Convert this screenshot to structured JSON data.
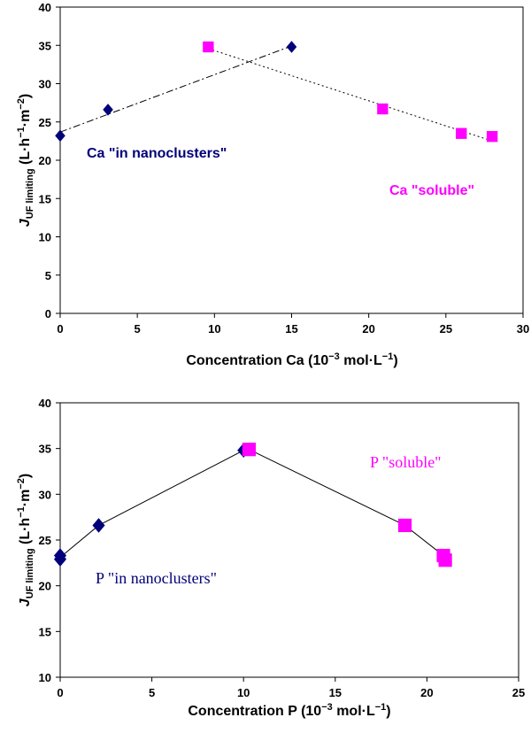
{
  "chart_data": [
    {
      "type": "scatter",
      "xlabel": "Concentration  Ca (10⁻³ mol·L⁻¹)",
      "ylabel": "JUF limiting (L·h⁻¹·m⁻²)",
      "xlim": [
        0,
        30
      ],
      "ylim": [
        0,
        40
      ],
      "xticks": [
        "0",
        "5",
        "10",
        "15",
        "20",
        "25",
        "30"
      ],
      "yticks": [
        "0",
        "5",
        "10",
        "15",
        "20",
        "25",
        "30",
        "35",
        "40"
      ],
      "grid": false,
      "series": [
        {
          "name": "Ca \"in nanoclusters\"",
          "marker": "diamond",
          "color": "#00007a",
          "trendline": "dash-dot",
          "x": [
            0,
            3.1,
            15
          ],
          "y": [
            23.2,
            26.6,
            34.8
          ]
        },
        {
          "name": "Ca \"soluble\"",
          "marker": "square",
          "color": "#ff00ff",
          "trendline": "dotted",
          "x": [
            9.6,
            20.9,
            26.0,
            28.0
          ],
          "y": [
            34.8,
            26.7,
            23.5,
            23.1
          ]
        }
      ]
    },
    {
      "type": "scatter",
      "xlabel": "Concentration  P (10⁻³ mol·L⁻¹)",
      "ylabel": "JUF limiting (L·h⁻¹·m⁻²)",
      "xlim": [
        0,
        25
      ],
      "ylim": [
        10,
        40
      ],
      "xticks": [
        "0",
        "5",
        "10",
        "15",
        "20",
        "25"
      ],
      "yticks": [
        "10",
        "15",
        "20",
        "25",
        "30",
        "35",
        "40"
      ],
      "grid": false,
      "series": [
        {
          "name": "P \"in nanoclusters\"",
          "marker": "diamond",
          "color": "#00007a",
          "trendline": "solid",
          "x": [
            0,
            0,
            2.1,
            10.0
          ],
          "y": [
            23.3,
            22.9,
            26.6,
            34.8
          ]
        },
        {
          "name": "P \"soluble\"",
          "marker": "square",
          "color": "#ff00ff",
          "trendline": "solid",
          "x": [
            10.3,
            18.8,
            20.9,
            21.0
          ],
          "y": [
            34.9,
            26.6,
            23.3,
            22.8
          ]
        }
      ]
    }
  ]
}
